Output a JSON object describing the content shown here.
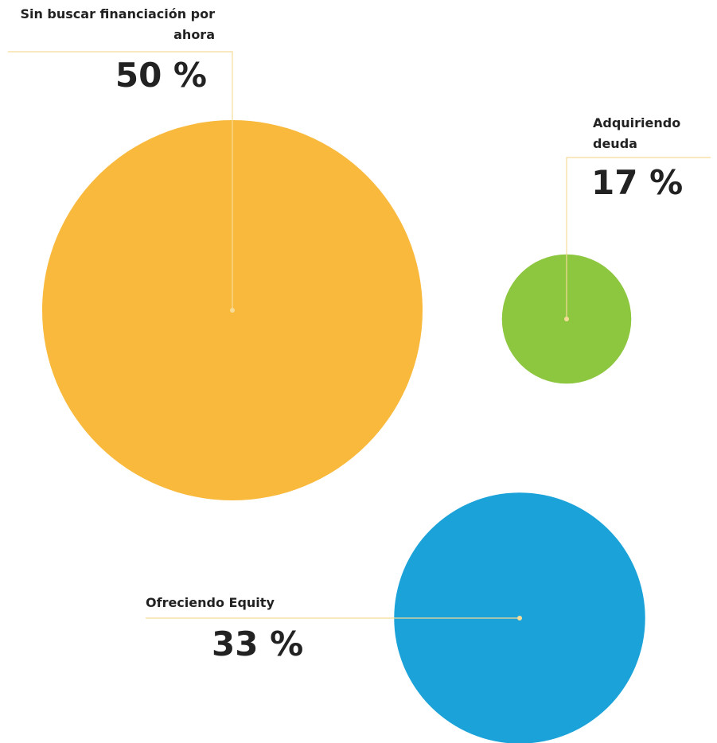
{
  "chart_data": {
    "type": "bubble",
    "categories": [
      "Sin buscar financiación por ahora",
      "Adquiriendo deuda",
      "Ofreciendo Equity"
    ],
    "values": [
      50,
      17,
      33
    ],
    "value_labels": [
      "50 %",
      "17 %",
      "33 %"
    ],
    "colors": [
      "#f9b93c",
      "#8dc63f",
      "#1ba3d9"
    ]
  }
}
